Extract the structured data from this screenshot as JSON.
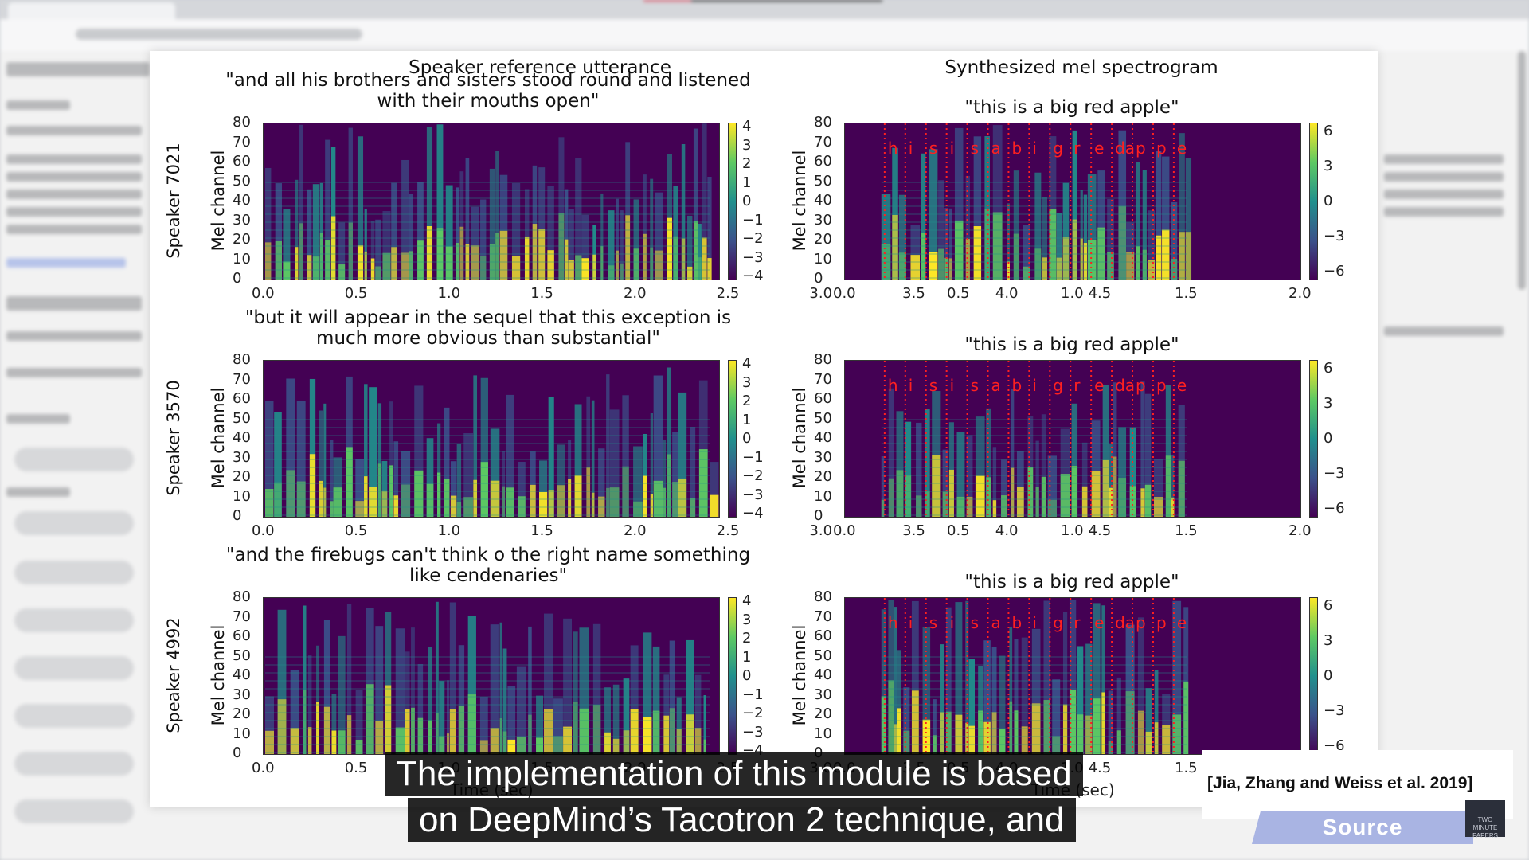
{
  "figure": {
    "left_title": "Speaker reference utterance",
    "right_title": "Synthesized mel spectrogram",
    "mel_label": "Mel channel",
    "time_label": "Time (sec)",
    "rows": [
      {
        "speaker": "Speaker 7021",
        "reference_text": "\"and all his brothers and sisters stood round and listened\nwith their mouths open\"",
        "synth_text": "\"this is a big red apple\""
      },
      {
        "speaker": "Speaker 3570",
        "reference_text": "\"but it will appear in the sequel that this exception is\nmuch more obvious than substantial\"",
        "synth_text": "\"this is a big red apple\""
      },
      {
        "speaker": "Speaker 4992",
        "reference_text": "\"and the firebugs can't think o the right name something\nlike cendenaries\"",
        "synth_text": "\"this is a big red apple\""
      }
    ],
    "y_ticks": [
      "80",
      "70",
      "60",
      "50",
      "40",
      "30",
      "20",
      "10",
      "0"
    ],
    "ref_x_ticks": [
      "0.0",
      "0.5",
      "1.0",
      "1.5",
      "2.0",
      "2.5",
      "3.0",
      "3.5",
      "4.0",
      "4.5"
    ],
    "synth_x_ticks": [
      "0.0",
      "0.5",
      "1.0",
      "1.5",
      "2.0"
    ],
    "ref_cbar_ticks": [
      "4",
      "3",
      "2",
      "1",
      "0",
      "−1",
      "−2",
      "−3",
      "−4"
    ],
    "synth_cbar_ticks": [
      "6",
      "3",
      "0",
      "−3",
      "−6"
    ],
    "phonemes": [
      "h",
      "i",
      "s",
      "i",
      "s",
      "a",
      "b",
      "i",
      "g",
      "r",
      "e",
      "da",
      "p",
      "p",
      "e"
    ],
    "phoneme_color": "#ff2020",
    "colormap": [
      "#440154",
      "#3b528b",
      "#21908d",
      "#5dc963",
      "#fde725"
    ]
  },
  "caption": {
    "line1": "The implementation of this module is based",
    "line2": "on DeepMind’s Tacotron 2 technique, and"
  },
  "citation": "[Jia, Zhang and Weiss et al. 2019]",
  "source_button": "Source",
  "logo_text": "TWO MINUTE PAPERS"
}
